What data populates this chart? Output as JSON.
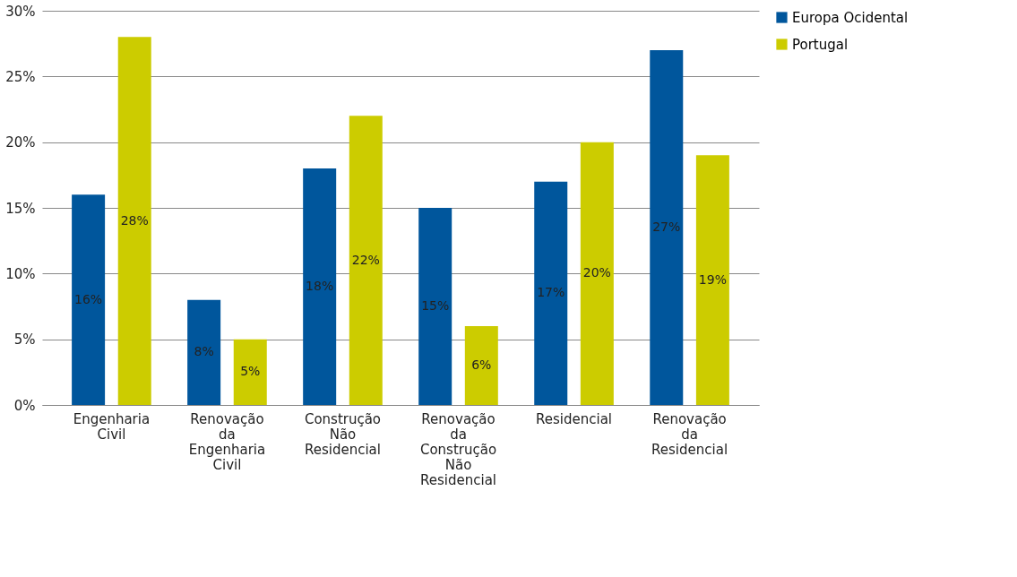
{
  "chart_data": {
    "type": "bar",
    "categories": [
      "Engenharia Civil",
      "Renovação da Engenharia Civil",
      "Construção Não Residencial",
      "Renovação da Construção Não Residencial",
      "Residencial",
      "Renovação da Residencial"
    ],
    "series": [
      {
        "name": "Europa Ocidental",
        "color": "#00569c",
        "values": [
          16,
          8,
          18,
          15,
          17,
          27
        ],
        "value_labels": [
          "16%",
          "8%",
          "18%",
          "15%",
          "17%",
          "27%"
        ]
      },
      {
        "name": "Portugal",
        "color": "#cccc00",
        "values": [
          28,
          5,
          22,
          6,
          20,
          19
        ],
        "value_labels": [
          "28%",
          "5%",
          "22%",
          "6%",
          "20%",
          "19%"
        ]
      }
    ],
    "ylim": [
      0,
      30
    ],
    "yticks": [
      {
        "value": 0,
        "label": "0%"
      },
      {
        "value": 5,
        "label": "5%"
      },
      {
        "value": 10,
        "label": "10%"
      },
      {
        "value": 15,
        "label": "15%"
      },
      {
        "value": 20,
        "label": "20%"
      },
      {
        "value": 25,
        "label": "25%"
      },
      {
        "value": 30,
        "label": "30%"
      }
    ],
    "grid": "y",
    "legend": "right"
  }
}
